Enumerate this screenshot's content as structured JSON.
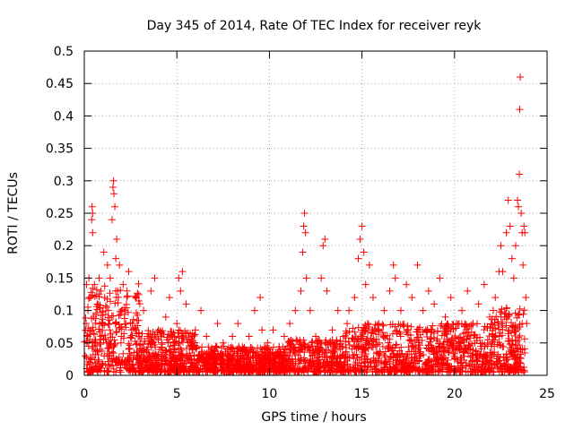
{
  "chart_data": {
    "type": "scatter",
    "title": "Day 345 of 2014, Rate Of TEC Index for receiver reyk",
    "xlabel": "GPS time / hours",
    "ylabel": "ROTI / TECUs",
    "xlim": [
      0,
      25
    ],
    "ylim": [
      0,
      0.5
    ],
    "x_ticks": [
      0,
      5,
      10,
      15,
      20,
      25
    ],
    "x_tick_labels": [
      "0",
      "5",
      "10",
      "15",
      "20",
      "25"
    ],
    "y_ticks": [
      0,
      0.05,
      0.1,
      0.15,
      0.2,
      0.25,
      0.3,
      0.35,
      0.4,
      0.45,
      0.5
    ],
    "y_tick_labels": [
      "0",
      "0.05",
      "0.1",
      "0.15",
      "0.2",
      "0.25",
      "0.3",
      "0.35",
      "0.4",
      "0.45",
      "0.5"
    ],
    "grid": true,
    "marker": "plus",
    "color": "#ff0000",
    "series": [
      {
        "name": "ROTI",
        "points": [
          [
            0.05,
            0.03
          ],
          [
            0.1,
            0.08
          ],
          [
            0.12,
            0.14
          ],
          [
            0.15,
            0.05
          ],
          [
            0.2,
            0.1
          ],
          [
            0.25,
            0.15
          ],
          [
            0.3,
            0.07
          ],
          [
            0.35,
            0.12
          ],
          [
            0.4,
            0.24
          ],
          [
            0.42,
            0.26
          ],
          [
            0.45,
            0.22
          ],
          [
            0.45,
            0.25
          ],
          [
            0.5,
            0.09
          ],
          [
            0.55,
            0.14
          ],
          [
            0.6,
            0.05
          ],
          [
            0.7,
            0.11
          ],
          [
            0.8,
            0.15
          ],
          [
            0.85,
            0.04
          ],
          [
            0.9,
            0.13
          ],
          [
            1.0,
            0.08
          ],
          [
            1.05,
            0.19
          ],
          [
            1.1,
            0.12
          ],
          [
            1.2,
            0.05
          ],
          [
            1.25,
            0.17
          ],
          [
            1.3,
            0.1
          ],
          [
            1.4,
            0.15
          ],
          [
            1.5,
            0.24
          ],
          [
            1.55,
            0.29
          ],
          [
            1.58,
            0.3
          ],
          [
            1.6,
            0.28
          ],
          [
            1.65,
            0.26
          ],
          [
            1.7,
            0.18
          ],
          [
            1.75,
            0.21
          ],
          [
            1.8,
            0.13
          ],
          [
            1.9,
            0.17
          ],
          [
            2.0,
            0.06
          ],
          [
            2.1,
            0.14
          ],
          [
            2.2,
            0.1
          ],
          [
            2.4,
            0.16
          ],
          [
            2.6,
            0.08
          ],
          [
            2.8,
            0.12
          ],
          [
            3.0,
            0.04
          ],
          [
            3.2,
            0.1
          ],
          [
            3.4,
            0.06
          ],
          [
            3.6,
            0.13
          ],
          [
            3.8,
            0.15
          ],
          [
            4.0,
            0.07
          ],
          [
            4.2,
            0.03
          ],
          [
            4.4,
            0.09
          ],
          [
            4.6,
            0.12
          ],
          [
            4.8,
            0.05
          ],
          [
            5.0,
            0.08
          ],
          [
            5.1,
            0.15
          ],
          [
            5.2,
            0.13
          ],
          [
            5.3,
            0.16
          ],
          [
            5.5,
            0.11
          ],
          [
            5.8,
            0.05
          ],
          [
            6.0,
            0.07
          ],
          [
            6.3,
            0.1
          ],
          [
            6.6,
            0.06
          ],
          [
            6.9,
            0.04
          ],
          [
            7.2,
            0.08
          ],
          [
            7.5,
            0.05
          ],
          [
            7.8,
            0.03
          ],
          [
            8.0,
            0.06
          ],
          [
            8.3,
            0.08
          ],
          [
            8.6,
            0.04
          ],
          [
            8.9,
            0.06
          ],
          [
            9.2,
            0.1
          ],
          [
            9.5,
            0.12
          ],
          [
            9.6,
            0.07
          ],
          [
            9.9,
            0.05
          ],
          [
            10.2,
            0.07
          ],
          [
            10.5,
            0.04
          ],
          [
            10.8,
            0.06
          ],
          [
            11.1,
            0.08
          ],
          [
            11.4,
            0.1
          ],
          [
            11.7,
            0.13
          ],
          [
            11.8,
            0.19
          ],
          [
            11.85,
            0.23
          ],
          [
            11.9,
            0.25
          ],
          [
            11.95,
            0.22
          ],
          [
            12.0,
            0.15
          ],
          [
            12.2,
            0.1
          ],
          [
            12.5,
            0.06
          ],
          [
            12.8,
            0.15
          ],
          [
            12.9,
            0.2
          ],
          [
            13.0,
            0.21
          ],
          [
            13.1,
            0.13
          ],
          [
            13.4,
            0.07
          ],
          [
            13.7,
            0.1
          ],
          [
            14.0,
            0.06
          ],
          [
            14.3,
            0.1
          ],
          [
            14.6,
            0.12
          ],
          [
            14.8,
            0.18
          ],
          [
            14.9,
            0.21
          ],
          [
            15.0,
            0.23
          ],
          [
            15.1,
            0.19
          ],
          [
            15.2,
            0.14
          ],
          [
            15.4,
            0.17
          ],
          [
            15.6,
            0.12
          ],
          [
            15.9,
            0.08
          ],
          [
            16.2,
            0.1
          ],
          [
            16.5,
            0.13
          ],
          [
            16.7,
            0.17
          ],
          [
            16.8,
            0.15
          ],
          [
            17.1,
            0.1
          ],
          [
            17.4,
            0.14
          ],
          [
            17.7,
            0.12
          ],
          [
            18.0,
            0.17
          ],
          [
            18.3,
            0.1
          ],
          [
            18.6,
            0.13
          ],
          [
            18.9,
            0.11
          ],
          [
            19.2,
            0.15
          ],
          [
            19.5,
            0.09
          ],
          [
            19.8,
            0.12
          ],
          [
            20.1,
            0.08
          ],
          [
            20.4,
            0.1
          ],
          [
            20.7,
            0.13
          ],
          [
            21.0,
            0.08
          ],
          [
            21.3,
            0.11
          ],
          [
            21.6,
            0.14
          ],
          [
            21.9,
            0.09
          ],
          [
            22.2,
            0.12
          ],
          [
            22.4,
            0.16
          ],
          [
            22.5,
            0.2
          ],
          [
            22.6,
            0.16
          ],
          [
            22.8,
            0.22
          ],
          [
            22.9,
            0.27
          ],
          [
            23.0,
            0.23
          ],
          [
            23.1,
            0.18
          ],
          [
            23.2,
            0.15
          ],
          [
            23.3,
            0.2
          ],
          [
            23.4,
            0.27
          ],
          [
            23.45,
            0.26
          ],
          [
            23.5,
            0.31
          ],
          [
            23.52,
            0.41
          ],
          [
            23.55,
            0.46
          ],
          [
            23.6,
            0.25
          ],
          [
            23.65,
            0.22
          ],
          [
            23.7,
            0.17
          ],
          [
            23.75,
            0.23
          ],
          [
            23.8,
            0.22
          ],
          [
            23.85,
            0.12
          ],
          [
            23.9,
            0.08
          ]
        ]
      }
    ]
  }
}
